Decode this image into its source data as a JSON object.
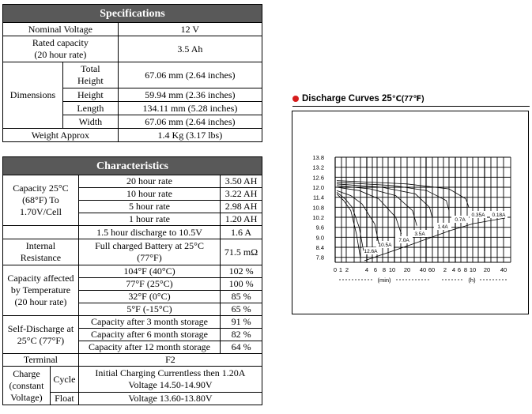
{
  "specifications": {
    "title": "Specifications",
    "nominal_voltage_label": "Nominal Voltage",
    "nominal_voltage": "12 V",
    "rated_capacity_label_1": "Rated capacity",
    "rated_capacity_label_2": "(20 hour rate)",
    "rated_capacity": "3.5 Ah",
    "dimensions_label": "Dimensions",
    "total_height_label_1": "Total",
    "total_height_label_2": "Height",
    "total_height": "67.06 mm (2.64 inches)",
    "height_label": "Height",
    "height": "59.94 mm (2.36 inches)",
    "length_label": "Length",
    "length": "134.11 mm (5.28 inches)",
    "width_label": "Width",
    "width": "67.06 mm (2.64 inches)",
    "weight_label": "Weight Approx",
    "weight": "1.4 Kg (3.17 lbs)"
  },
  "characteristics": {
    "title": "Characteristics",
    "capacity_label_1": "Capacity 25°C",
    "capacity_label_2": "(68°F) To",
    "capacity_label_3": "1.70V/Cell",
    "capacity_rows": [
      {
        "label": "20 hour rate",
        "value": "3.50 AH"
      },
      {
        "label": "10 hour rate",
        "value": "3.22 AH"
      },
      {
        "label": "5 hour rate",
        "value": "2.98 AH"
      },
      {
        "label": "1 hour rate",
        "value": "1.20 AH"
      }
    ],
    "discharge_label": "1.5 hour discharge to 10.5V",
    "discharge_value": "1.6 A",
    "resistance_label_1": "Internal",
    "resistance_label_2": "Resistance",
    "resistance_cond_1": "Full charged Battery at 25°C",
    "resistance_cond_2": "(77°F)",
    "resistance_value": "71.5 mΩ",
    "temp_label_1": "Capacity affected",
    "temp_label_2": "by Temperature",
    "temp_label_3": "(20 hour rate)",
    "temp_rows": [
      {
        "label": "104°F (40°C)",
        "value": "102 %"
      },
      {
        "label": "77°F (25°C)",
        "value": "100 %"
      },
      {
        "label": "32°F (0°C)",
        "value": "85 %"
      },
      {
        "label": "5°F (-15°C)",
        "value": "65 %"
      }
    ],
    "self_label_1": "Self-Discharge at",
    "self_label_2": "25°C (77°F)",
    "self_rows": [
      {
        "label": "Capacity after 3 month storage",
        "value": "91 %"
      },
      {
        "label": "Capacity after 6 month storage",
        "value": "82 %"
      },
      {
        "label": "Capacity after 12 month storage",
        "value": "64 %"
      }
    ],
    "terminal_label": "Terminal",
    "terminal_value": "F2",
    "charge_label_1": "Charge",
    "charge_label_2": "(constant",
    "charge_label_3": "Voltage)",
    "cycle_label": "Cycle",
    "cycle_value_1": "Initial Charging Currentless then 1.20A",
    "cycle_value_2": "Voltage 14.50-14.90V",
    "float_label": "Float",
    "float_value": "Voltage 13.60-13.80V"
  },
  "chart_data": {
    "type": "line",
    "title": "Discharge Curves 25℃(77℉)",
    "title_main": "Discharge Curves 25",
    "title_unit": "℃(77℉)",
    "accent_color": "#d61c1c",
    "y_ticks": [
      "13.8",
      "13.2",
      "12.6",
      "12.0",
      "11.4",
      "10.8",
      "10.2",
      "9.6",
      "9.0",
      "8.4",
      "7.8"
    ],
    "x_tick_labels": [
      "0",
      "1",
      "2",
      "4",
      "6",
      "8",
      "10",
      "20",
      "40",
      "60",
      "2",
      "4",
      "6",
      "8",
      "10",
      "20",
      "40"
    ],
    "x_unit_min": "min",
    "x_unit_h": "h",
    "series": [
      {
        "name": "12.6A",
        "x": [
          0,
          2.5,
          5,
          7,
          8.5
        ],
        "y": [
          11.6,
          11.2,
          10.6,
          9.2,
          7.7
        ]
      },
      {
        "name": "10.5A",
        "x": [
          0,
          3,
          5.5,
          8,
          9.5
        ],
        "y": [
          11.7,
          11.3,
          10.8,
          9.6,
          8.2
        ]
      },
      {
        "name": "7.0A",
        "x": [
          0,
          5,
          9,
          13.5,
          15
        ],
        "y": [
          11.8,
          11.5,
          11.0,
          9.8,
          8.6
        ]
      },
      {
        "name": "3.5A",
        "x": [
          0,
          8,
          15,
          21,
          23
        ],
        "y": [
          12.0,
          11.8,
          11.3,
          10.2,
          9.2
        ]
      },
      {
        "name": "1.4A",
        "x": [
          0,
          12,
          21,
          27,
          28.5
        ],
        "y": [
          12.1,
          11.9,
          11.5,
          10.6,
          9.7
        ]
      },
      {
        "name": "0.7A",
        "x": [
          0,
          16,
          28,
          33,
          34
        ],
        "y": [
          12.2,
          12.0,
          11.6,
          10.8,
          10.2
        ]
      },
      {
        "name": "0.35A",
        "x": [
          0,
          20,
          32,
          39,
          40
        ],
        "y": [
          12.3,
          12.1,
          11.8,
          11.2,
          10.6
        ]
      },
      {
        "name": "0.18A",
        "x": [
          0,
          25,
          40,
          46,
          47
        ],
        "y": [
          12.4,
          12.2,
          11.9,
          11.3,
          10.8
        ]
      }
    ]
  }
}
